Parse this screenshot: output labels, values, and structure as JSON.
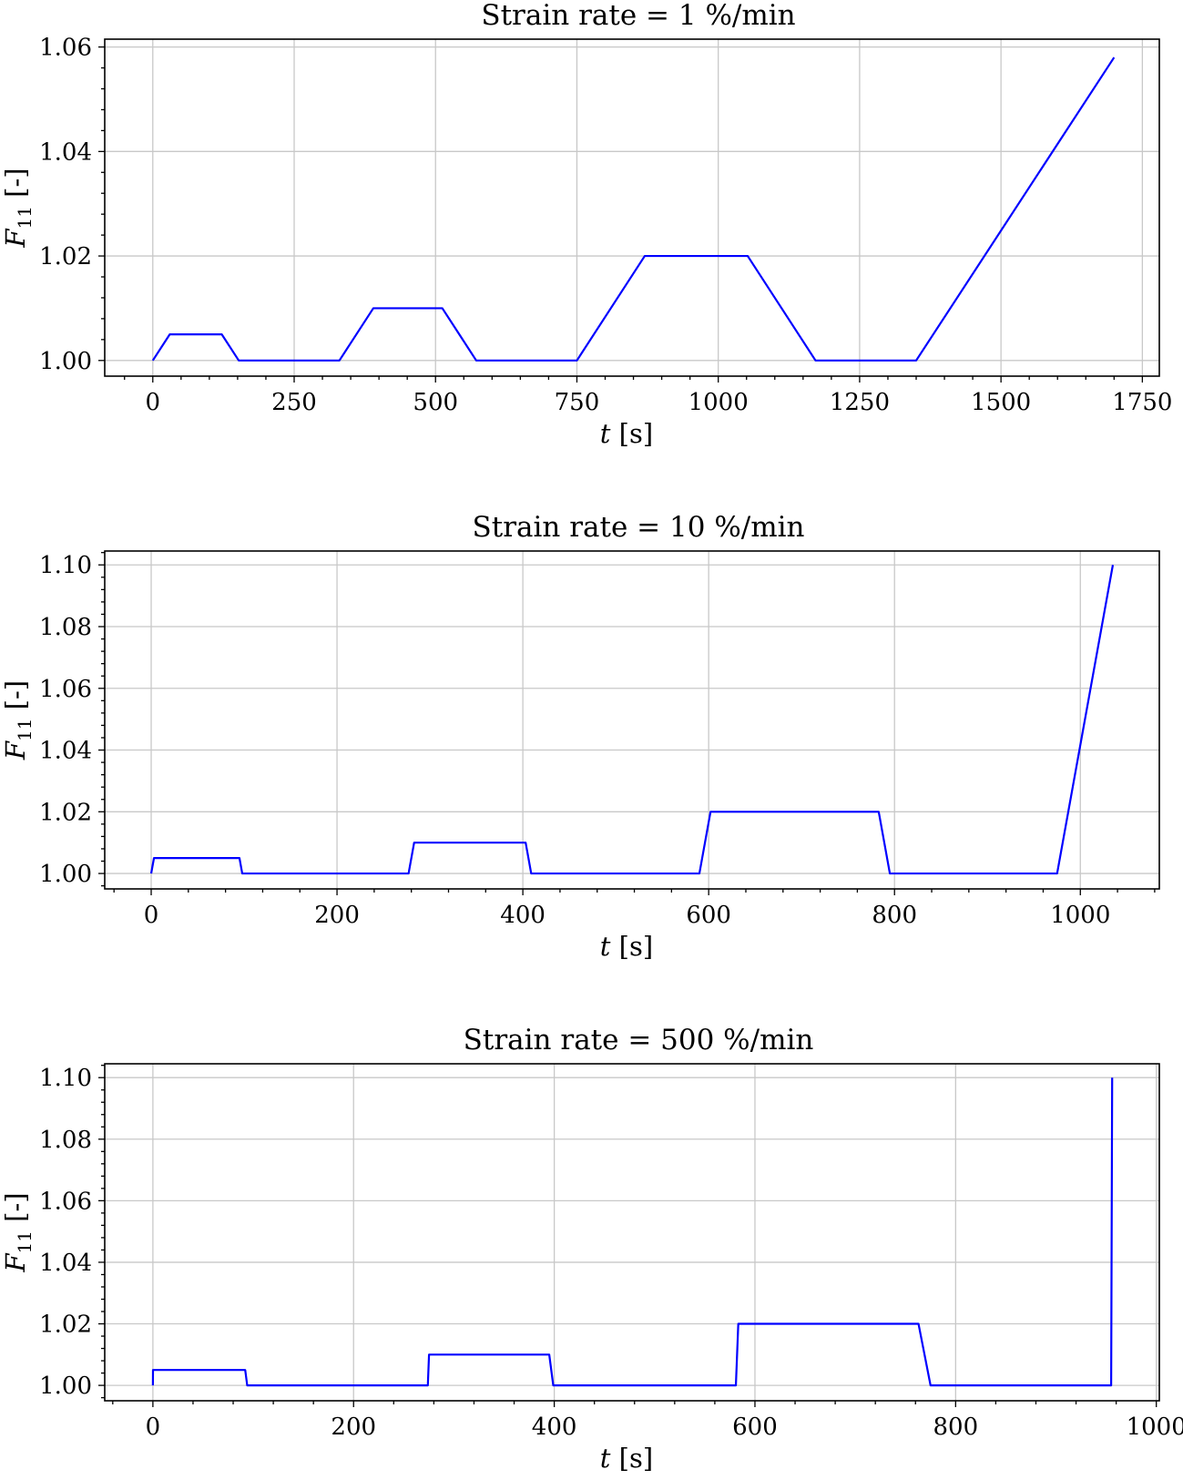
{
  "chart_data": [
    {
      "type": "line",
      "title": "Strain rate = 1 %/min",
      "xlabel_var": "t",
      "xlabel_unit": "[s]",
      "ylabel_var": "F",
      "ylabel_sub": "11",
      "ylabel_unit": "[-]",
      "xlim": [
        -85,
        1780
      ],
      "ylim": [
        0.997,
        1.0615
      ],
      "xticks": [
        0,
        250,
        500,
        750,
        1000,
        1250,
        1500,
        1750
      ],
      "xtick_labels": [
        "0",
        "250",
        "500",
        "750",
        "1000",
        "1250",
        "1500",
        "1750"
      ],
      "yticks": [
        1.0,
        1.02,
        1.04,
        1.06
      ],
      "ytick_labels": [
        "1.00",
        "1.02",
        "1.04",
        "1.06"
      ],
      "grid": true,
      "color": "#0000ff",
      "series": [
        {
          "x": [
            0,
            30,
            122,
            152,
            330,
            390,
            512,
            572,
            750,
            870,
            1052,
            1172,
            1350,
            1700
          ],
          "y": [
            1.0,
            1.005,
            1.005,
            1.0,
            1.0,
            1.01,
            1.01,
            1.0,
            1.0,
            1.02,
            1.02,
            1.0,
            1.0,
            1.058
          ]
        }
      ]
    },
    {
      "type": "line",
      "title": "Strain rate = 10 %/min",
      "xlabel_var": "t",
      "xlabel_unit": "[s]",
      "ylabel_var": "F",
      "ylabel_sub": "11",
      "ylabel_unit": "[-]",
      "xlim": [
        -50,
        1085
      ],
      "ylim": [
        0.995,
        1.1045
      ],
      "xticks": [
        0,
        200,
        400,
        600,
        800,
        1000
      ],
      "xtick_labels": [
        "0",
        "200",
        "400",
        "600",
        "800",
        "1000"
      ],
      "yticks": [
        1.0,
        1.02,
        1.04,
        1.06,
        1.08,
        1.1
      ],
      "ytick_labels": [
        "1.00",
        "1.02",
        "1.04",
        "1.06",
        "1.08",
        "1.10"
      ],
      "grid": true,
      "color": "#0000ff",
      "series": [
        {
          "x": [
            0,
            3,
            95,
            98,
            277,
            283,
            403,
            409,
            590,
            602,
            783,
            795,
            975,
            1035
          ],
          "y": [
            1.0,
            1.005,
            1.005,
            1.0,
            1.0,
            1.01,
            1.01,
            1.0,
            1.0,
            1.02,
            1.02,
            1.0,
            1.0,
            1.1
          ]
        }
      ]
    },
    {
      "type": "line",
      "title": "Strain rate = 500 %/min",
      "xlabel_var": "t",
      "xlabel_unit": "[s]",
      "ylabel_var": "F",
      "ylabel_sub": "11",
      "ylabel_unit": "[-]",
      "xlim": [
        -48,
        1003
      ],
      "ylim": [
        0.995,
        1.1045
      ],
      "xticks": [
        0,
        200,
        400,
        600,
        800,
        1000
      ],
      "xtick_labels": [
        "0",
        "200",
        "400",
        "600",
        "800",
        "1000"
      ],
      "yticks": [
        1.0,
        1.02,
        1.04,
        1.06,
        1.08,
        1.1
      ],
      "ytick_labels": [
        "1.00",
        "1.02",
        "1.04",
        "1.06",
        "1.08",
        "1.10"
      ],
      "grid": true,
      "color": "#0000ff",
      "series": [
        {
          "x": [
            0,
            0.1,
            92,
            94,
            274,
            275.2,
            395,
            399,
            581,
            583.4,
            763,
            775,
            955,
            956
          ],
          "y": [
            1.0,
            1.005,
            1.005,
            1.0,
            1.0,
            1.01,
            1.01,
            1.0,
            1.0,
            1.02,
            1.02,
            1.0,
            1.0,
            1.1
          ]
        }
      ]
    }
  ]
}
